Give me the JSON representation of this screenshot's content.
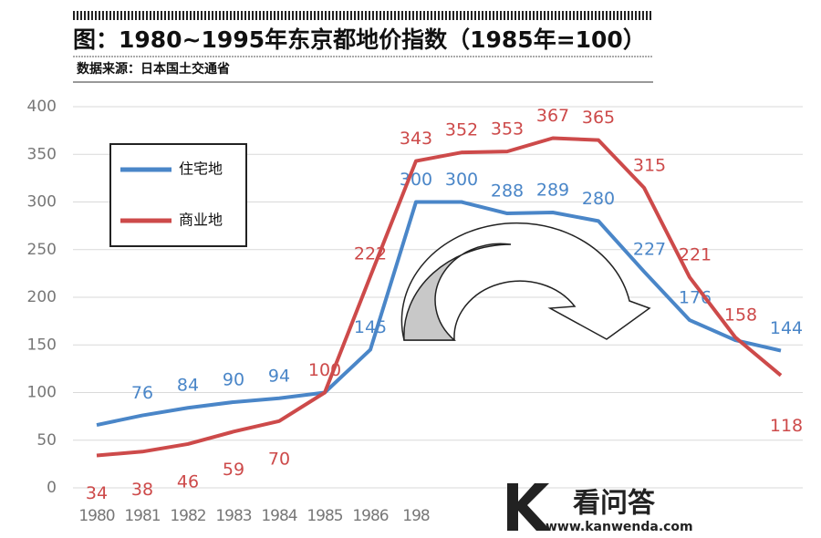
{
  "chart_data": {
    "type": "line",
    "title": "图：1980~1995年东京都地价指数（1985年=100）",
    "subtitle": "数据来源：日本国土交通省",
    "categories": [
      "1980",
      "1981",
      "1982",
      "1983",
      "1984",
      "1985",
      "1986",
      "198",
      null,
      null,
      null,
      null,
      null,
      null,
      null,
      null
    ],
    "series": [
      {
        "name": "住宅地",
        "color": "#4a86c8",
        "values": [
          66,
          76,
          84,
          90,
          94,
          100,
          145,
          300,
          300,
          288,
          289,
          280,
          227,
          176,
          155,
          144
        ],
        "value_labels": [
          null,
          "76",
          "84",
          "90",
          "94",
          null,
          "145",
          "300",
          "300",
          "288",
          "289",
          "280",
          "227",
          "176",
          null,
          "144"
        ]
      },
      {
        "name": "商业地",
        "color": "#cd4a4a",
        "values": [
          34,
          38,
          46,
          59,
          70,
          100,
          222,
          343,
          352,
          353,
          367,
          365,
          315,
          221,
          158,
          118
        ]
      }
    ],
    "ylim": [
      0,
      400
    ],
    "yticks": [
      0,
      50,
      100,
      150,
      200,
      250,
      300,
      350,
      400
    ],
    "grid": true,
    "watermark": {
      "brand": "看问答",
      "url": "www.kanwenda.com"
    }
  }
}
